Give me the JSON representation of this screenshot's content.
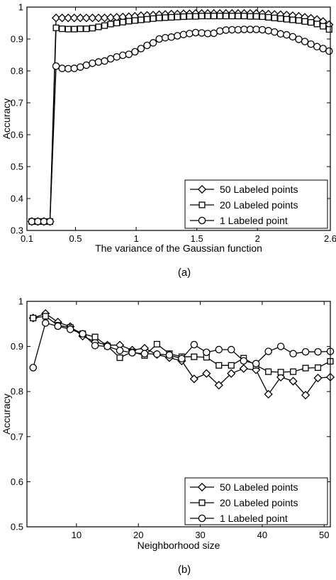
{
  "chart_data": [
    {
      "type": "line",
      "caption": "(a)",
      "xlabel": "The variance of the Gaussian function",
      "ylabel": "Accuracy",
      "xlim": [
        0.1,
        2.6
      ],
      "ylim": [
        0.3,
        1.0
      ],
      "xticks": [
        0.1,
        0.5,
        1,
        1.5,
        2,
        2.6
      ],
      "xtick_labels": [
        "0.1",
        "0.5",
        "1",
        "1.5",
        "2",
        "2.6"
      ],
      "yticks": [
        0.3,
        0.4,
        0.5,
        0.6,
        0.7,
        0.8,
        0.9,
        1.0
      ],
      "ytick_labels": [
        "0.3",
        "0.4",
        "0.5",
        "0.6",
        "0.7",
        "0.8",
        "0.9",
        "1"
      ],
      "legend_position": "bottom-right",
      "series": [
        {
          "name": "50 Labeled points",
          "marker": "diamond",
          "x": [
            0.14,
            0.19,
            0.24,
            0.29,
            0.34,
            0.39,
            0.44,
            0.49,
            0.54,
            0.59,
            0.64,
            0.69,
            0.74,
            0.79,
            0.84,
            0.89,
            0.94,
            0.99,
            1.04,
            1.09,
            1.14,
            1.19,
            1.24,
            1.29,
            1.34,
            1.39,
            1.44,
            1.49,
            1.54,
            1.59,
            1.64,
            1.69,
            1.74,
            1.79,
            1.84,
            1.89,
            1.94,
            1.99,
            2.04,
            2.09,
            2.14,
            2.19,
            2.24,
            2.29,
            2.34,
            2.39,
            2.44,
            2.49,
            2.54,
            2.59
          ],
          "y": [
            0.328,
            0.328,
            0.328,
            0.328,
            0.966,
            0.966,
            0.966,
            0.966,
            0.966,
            0.966,
            0.966,
            0.966,
            0.966,
            0.967,
            0.968,
            0.969,
            0.97,
            0.971,
            0.973,
            0.974,
            0.975,
            0.976,
            0.977,
            0.978,
            0.978,
            0.979,
            0.979,
            0.98,
            0.98,
            0.98,
            0.98,
            0.98,
            0.98,
            0.98,
            0.98,
            0.98,
            0.98,
            0.98,
            0.979,
            0.978,
            0.977,
            0.976,
            0.975,
            0.973,
            0.971,
            0.968,
            0.965,
            0.961,
            0.955,
            0.945
          ]
        },
        {
          "name": "20 Labeled points",
          "marker": "square",
          "x": [
            0.14,
            0.19,
            0.24,
            0.29,
            0.34,
            0.39,
            0.44,
            0.49,
            0.54,
            0.59,
            0.64,
            0.69,
            0.74,
            0.79,
            0.84,
            0.89,
            0.94,
            0.99,
            1.04,
            1.09,
            1.14,
            1.19,
            1.24,
            1.29,
            1.34,
            1.39,
            1.44,
            1.49,
            1.54,
            1.59,
            1.64,
            1.69,
            1.74,
            1.79,
            1.84,
            1.89,
            1.94,
            1.99,
            2.04,
            2.09,
            2.14,
            2.19,
            2.24,
            2.29,
            2.34,
            2.39,
            2.44,
            2.49,
            2.54,
            2.59
          ],
          "y": [
            0.328,
            0.328,
            0.328,
            0.328,
            0.935,
            0.932,
            0.931,
            0.931,
            0.932,
            0.932,
            0.934,
            0.938,
            0.942,
            0.947,
            0.95,
            0.953,
            0.956,
            0.958,
            0.96,
            0.962,
            0.964,
            0.966,
            0.967,
            0.968,
            0.969,
            0.97,
            0.971,
            0.971,
            0.972,
            0.972,
            0.972,
            0.972,
            0.972,
            0.972,
            0.972,
            0.972,
            0.971,
            0.971,
            0.97,
            0.968,
            0.966,
            0.964,
            0.962,
            0.96,
            0.958,
            0.955,
            0.952,
            0.947,
            0.94,
            0.93
          ]
        },
        {
          "name": "1 Labeled point",
          "marker": "circle",
          "x": [
            0.14,
            0.19,
            0.24,
            0.29,
            0.34,
            0.39,
            0.44,
            0.49,
            0.54,
            0.59,
            0.64,
            0.69,
            0.74,
            0.79,
            0.84,
            0.89,
            0.94,
            0.99,
            1.04,
            1.09,
            1.14,
            1.19,
            1.24,
            1.29,
            1.34,
            1.39,
            1.44,
            1.49,
            1.54,
            1.59,
            1.64,
            1.69,
            1.74,
            1.79,
            1.84,
            1.89,
            1.94,
            1.99,
            2.04,
            2.09,
            2.14,
            2.19,
            2.24,
            2.29,
            2.34,
            2.39,
            2.44,
            2.49,
            2.54,
            2.59
          ],
          "y": [
            0.328,
            0.328,
            0.328,
            0.328,
            0.815,
            0.808,
            0.807,
            0.808,
            0.812,
            0.818,
            0.824,
            0.828,
            0.831,
            0.838,
            0.844,
            0.849,
            0.852,
            0.86,
            0.87,
            0.88,
            0.888,
            0.9,
            0.904,
            0.906,
            0.91,
            0.914,
            0.917,
            0.92,
            0.919,
            0.917,
            0.918,
            0.925,
            0.928,
            0.929,
            0.929,
            0.93,
            0.93,
            0.93,
            0.929,
            0.926,
            0.922,
            0.916,
            0.913,
            0.907,
            0.899,
            0.892,
            0.884,
            0.876,
            0.87,
            0.862
          ]
        }
      ]
    },
    {
      "type": "line",
      "caption": "(b)",
      "xlabel": "Neighborhood size",
      "ylabel": "Accuracy",
      "xlim": [
        2,
        51
      ],
      "ylim": [
        0.5,
        1.0
      ],
      "xticks": [
        10,
        20,
        30,
        40,
        50
      ],
      "xtick_labels": [
        "10",
        "20",
        "30",
        "40",
        "50"
      ],
      "yticks": [
        0.5,
        0.6,
        0.7,
        0.8,
        0.9,
        1.0
      ],
      "ytick_labels": [
        "0.5",
        "0.6",
        "0.7",
        "0.8",
        "0.9",
        "1"
      ],
      "legend_position": "bottom-right",
      "series": [
        {
          "name": "50 Labeled points",
          "marker": "diamond",
          "x": [
            3,
            5,
            7,
            9,
            11,
            13,
            15,
            17,
            19,
            21,
            23,
            25,
            27,
            29,
            31,
            33,
            35,
            37,
            39,
            41,
            43,
            45,
            47,
            49,
            51
          ],
          "y": [
            0.963,
            0.973,
            0.954,
            0.944,
            0.923,
            0.91,
            0.903,
            0.903,
            0.892,
            0.896,
            0.882,
            0.875,
            0.868,
            0.828,
            0.84,
            0.814,
            0.84,
            0.851,
            0.848,
            0.794,
            0.832,
            0.823,
            0.792,
            0.83,
            0.832
          ]
        },
        {
          "name": "20 Labeled points",
          "marker": "square",
          "x": [
            3,
            5,
            7,
            9,
            11,
            13,
            15,
            17,
            19,
            21,
            23,
            25,
            27,
            29,
            31,
            33,
            35,
            37,
            39,
            41,
            43,
            45,
            47,
            49,
            51
          ],
          "y": [
            0.963,
            0.967,
            0.947,
            0.942,
            0.928,
            0.921,
            0.901,
            0.875,
            0.888,
            0.88,
            0.905,
            0.884,
            0.877,
            0.877,
            0.876,
            0.858,
            0.858,
            0.874,
            0.858,
            0.844,
            0.843,
            0.844,
            0.852,
            0.853,
            0.867
          ]
        },
        {
          "name": "1 Labeled point",
          "marker": "circle",
          "x": [
            3,
            5,
            7,
            9,
            11,
            13,
            15,
            17,
            19,
            21,
            23,
            25,
            27,
            29,
            31,
            33,
            35,
            37,
            39,
            41,
            43,
            45,
            47,
            49,
            51
          ],
          "y": [
            0.853,
            0.952,
            0.945,
            0.938,
            0.928,
            0.902,
            0.9,
            0.891,
            0.886,
            0.884,
            0.883,
            0.881,
            0.873,
            0.904,
            0.887,
            0.893,
            0.893,
            0.868,
            0.862,
            0.889,
            0.9,
            0.884,
            0.888,
            0.888,
            0.889
          ]
        }
      ]
    }
  ]
}
